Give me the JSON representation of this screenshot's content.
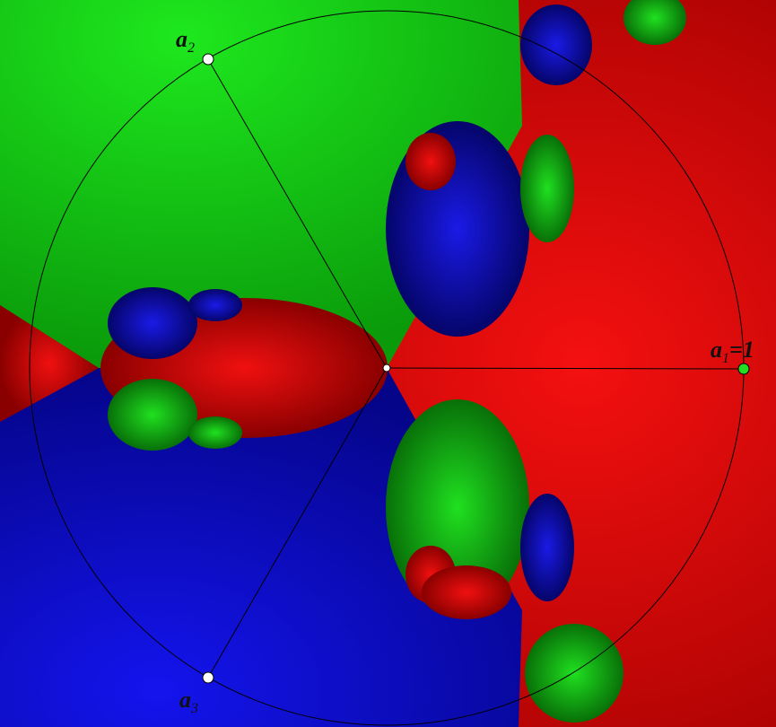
{
  "labels": [
    {
      "base": "a",
      "sub": "1",
      "suffix": "=1"
    },
    {
      "base": "a",
      "sub": "2"
    },
    {
      "base": "a",
      "sub": "3"
    }
  ]
}
